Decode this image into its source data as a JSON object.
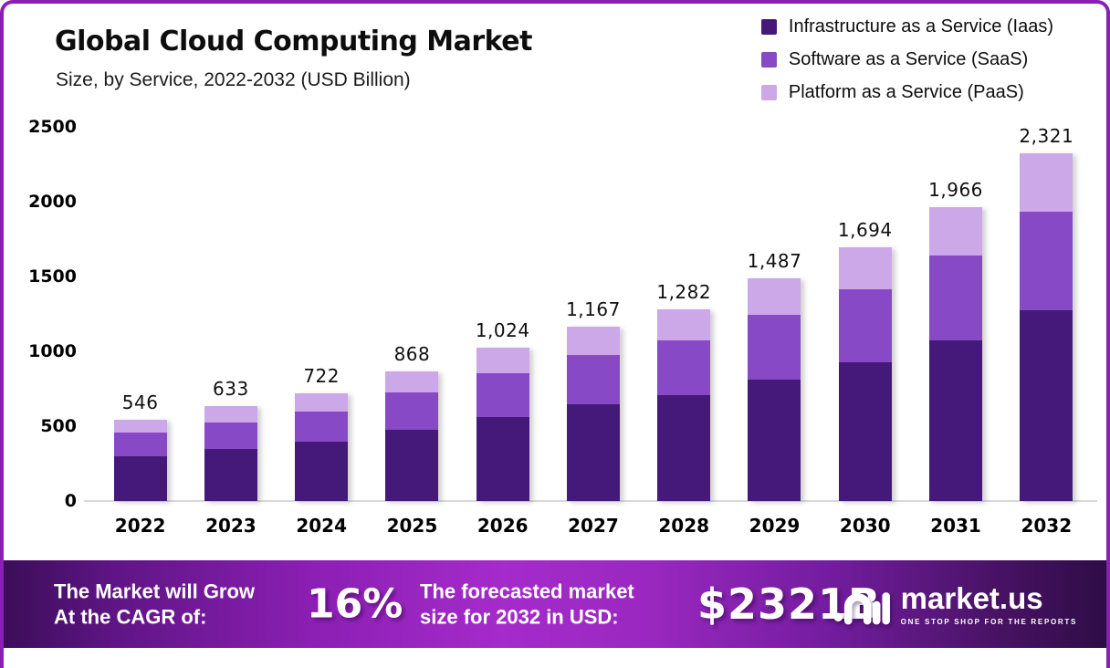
{
  "header": {
    "title": "Global Cloud Computing Market",
    "subtitle": "Size, by Service, 2022-2032 (USD Billion)"
  },
  "chart_data": {
    "type": "bar",
    "stacked": true,
    "title": "Global Cloud Computing Market Size, by Service, 2022-2032 (USD Billion)",
    "categories": [
      "2022",
      "2023",
      "2024",
      "2025",
      "2026",
      "2027",
      "2028",
      "2029",
      "2030",
      "2031",
      "2032"
    ],
    "series": [
      {
        "name": "Infrastructure as a Service (Iaas)",
        "color": "#44197a",
        "values": [
          298,
          346,
          395,
          474,
          559,
          644,
          710,
          813,
          929,
          1075,
          1275
        ]
      },
      {
        "name": "Software as a Service (SaaS)",
        "color": "#8749c6",
        "values": [
          157,
          182,
          200,
          255,
          297,
          333,
          364,
          432,
          486,
          564,
          656
        ]
      },
      {
        "name": "Platform as a Service (PaaS)",
        "color": "#cda8e8",
        "values": [
          91,
          105,
          127,
          139,
          168,
          190,
          208,
          242,
          279,
          327,
          390
        ]
      }
    ],
    "totals": [
      546,
      633,
      722,
      868,
      1024,
      1167,
      1282,
      1487,
      1694,
      1966,
      2321
    ],
    "total_labels": [
      "546",
      "633",
      "722",
      "868",
      "1,024",
      "1,167",
      "1,282",
      "1,487",
      "1,694",
      "1,966",
      "2,321"
    ],
    "ylim": [
      0,
      2500
    ],
    "yticks": [
      0,
      500,
      1000,
      1500,
      2000,
      2500
    ],
    "ytick_labels": [
      "0",
      "500",
      "1000",
      "1500",
      "2000",
      "2500"
    ],
    "grid": false,
    "legend_position": "top-right"
  },
  "banner": {
    "cagr_label_line1": "The Market will Grow",
    "cagr_label_line2": "At the CAGR of:",
    "cagr_value": "16%",
    "forecast_label_line1": "The forecasted market",
    "forecast_label_line2": "size for 2032 in USD:",
    "forecast_value": "$2321B",
    "brand": "market.us",
    "tagline": "ONE STOP SHOP FOR THE REPORTS"
  },
  "colors": {
    "border": "#8a1fb5",
    "axis_line": "#d8d8d8",
    "banner_bright": "#a52bca",
    "banner_dark_left": "#3c0d59",
    "banner_dark_right": "#2c0c44",
    "label_text": "#0d0d0d"
  }
}
